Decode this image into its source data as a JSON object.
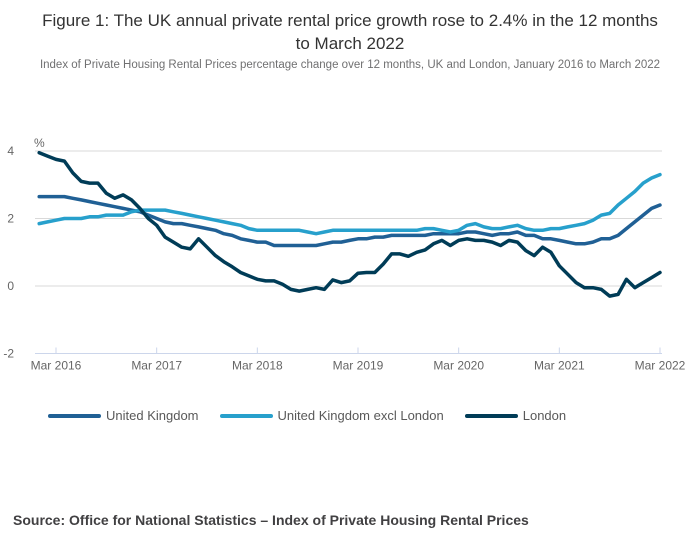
{
  "figure": {
    "title": "Figure 1: The UK annual private rental price growth rose to 2.4% in the 12 months to March 2022",
    "subtitle": "Index of Private Housing Rental Prices percentage change over 12 months, UK and London, January 2016 to March 2022",
    "source": "Source: Office for National Statistics – Index of Private Housing Rental Prices"
  },
  "chart_data": {
    "type": "line",
    "title": "Figure 1: The UK annual private rental price growth rose to 2.4% in the 12 months to March 2022",
    "subtitle": "Index of Private Housing Rental Prices percentage change over 12 months, UK and London, January 2016 to March 2022",
    "unit_label": "%",
    "x_start": "Jan 2016",
    "x_end": "Mar 2022",
    "x_frequency": "monthly",
    "x_tick_labels": [
      "Mar 2016",
      "Mar 2017",
      "Mar 2018",
      "Mar 2019",
      "Mar 2020",
      "Mar 2021",
      "Mar 2022"
    ],
    "x_tick_month_indices": [
      2,
      14,
      26,
      38,
      50,
      62,
      74
    ],
    "y_ticks": [
      4,
      2,
      0,
      -2
    ],
    "ylim": [
      -2,
      4.3
    ],
    "grid": "horizontal",
    "legend_position": "bottom-left",
    "colors": {
      "grid": "#d9d9d9",
      "axis": "#ccd6eb",
      "axis_text": "#666666"
    },
    "series": [
      {
        "name": "United Kingdom",
        "color": "#206095",
        "values": [
          2.65,
          2.65,
          2.65,
          2.65,
          2.6,
          2.55,
          2.5,
          2.45,
          2.4,
          2.35,
          2.3,
          2.25,
          2.2,
          2.1,
          2.0,
          1.9,
          1.85,
          1.85,
          1.8,
          1.75,
          1.7,
          1.65,
          1.55,
          1.5,
          1.4,
          1.35,
          1.3,
          1.3,
          1.2,
          1.2,
          1.2,
          1.2,
          1.2,
          1.2,
          1.25,
          1.3,
          1.3,
          1.35,
          1.4,
          1.4,
          1.45,
          1.45,
          1.5,
          1.5,
          1.5,
          1.5,
          1.5,
          1.55,
          1.55,
          1.55,
          1.55,
          1.6,
          1.6,
          1.55,
          1.5,
          1.55,
          1.55,
          1.6,
          1.5,
          1.5,
          1.4,
          1.4,
          1.35,
          1.3,
          1.25,
          1.25,
          1.3,
          1.4,
          1.4,
          1.5,
          1.7,
          1.9,
          2.1,
          2.3,
          2.4
        ]
      },
      {
        "name": "United Kingdom excl London",
        "color": "#27A0CC",
        "values": [
          1.85,
          1.9,
          1.95,
          2.0,
          2.0,
          2.0,
          2.05,
          2.05,
          2.1,
          2.1,
          2.1,
          2.2,
          2.25,
          2.25,
          2.25,
          2.25,
          2.2,
          2.15,
          2.1,
          2.05,
          2.0,
          1.95,
          1.9,
          1.85,
          1.8,
          1.7,
          1.65,
          1.65,
          1.65,
          1.65,
          1.65,
          1.65,
          1.6,
          1.55,
          1.6,
          1.65,
          1.65,
          1.65,
          1.65,
          1.65,
          1.65,
          1.65,
          1.65,
          1.65,
          1.65,
          1.65,
          1.7,
          1.7,
          1.65,
          1.6,
          1.65,
          1.8,
          1.85,
          1.75,
          1.7,
          1.7,
          1.75,
          1.8,
          1.7,
          1.65,
          1.65,
          1.7,
          1.7,
          1.75,
          1.8,
          1.85,
          1.95,
          2.1,
          2.15,
          2.4,
          2.6,
          2.8,
          3.05,
          3.2,
          3.3
        ]
      },
      {
        "name": "London",
        "color": "#003C57",
        "values": [
          3.95,
          3.85,
          3.75,
          3.7,
          3.35,
          3.1,
          3.05,
          3.05,
          2.75,
          2.6,
          2.7,
          2.55,
          2.3,
          2.0,
          1.8,
          1.45,
          1.3,
          1.15,
          1.1,
          1.4,
          1.15,
          0.9,
          0.72,
          0.57,
          0.4,
          0.3,
          0.2,
          0.15,
          0.15,
          0.05,
          -0.1,
          -0.15,
          -0.1,
          -0.05,
          -0.1,
          0.18,
          0.1,
          0.15,
          0.38,
          0.4,
          0.4,
          0.65,
          0.95,
          0.95,
          0.88,
          1.0,
          1.07,
          1.25,
          1.35,
          1.2,
          1.35,
          1.4,
          1.35,
          1.35,
          1.3,
          1.2,
          1.35,
          1.3,
          1.05,
          0.9,
          1.15,
          1.0,
          0.6,
          0.35,
          0.1,
          -0.05,
          -0.05,
          -0.1,
          -0.3,
          -0.25,
          0.2,
          -0.05,
          0.1,
          0.25,
          0.4
        ]
      }
    ]
  }
}
